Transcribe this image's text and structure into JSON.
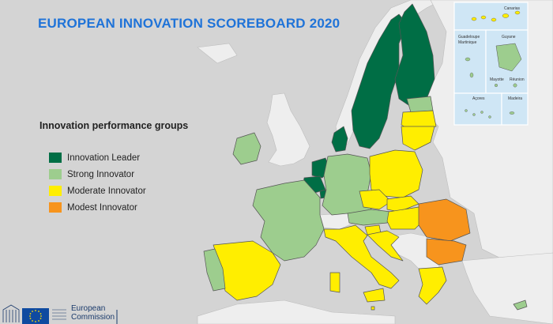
{
  "title": "EUROPEAN INNOVATION SCOREBOARD 2020",
  "legend": {
    "title": "Innovation performance groups",
    "items": [
      {
        "label": "Innovation Leader",
        "color": "#006e45"
      },
      {
        "label": "Strong Innovator",
        "color": "#9dcd8e"
      },
      {
        "label": "Moderate Innovator",
        "color": "#ffee00"
      },
      {
        "label": "Modest Innovator",
        "color": "#f7941d"
      }
    ]
  },
  "countries": [
    {
      "name": "Sweden",
      "group": "Innovation Leader"
    },
    {
      "name": "Finland",
      "group": "Innovation Leader"
    },
    {
      "name": "Denmark",
      "group": "Innovation Leader"
    },
    {
      "name": "Netherlands",
      "group": "Innovation Leader"
    },
    {
      "name": "Luxembourg",
      "group": "Innovation Leader"
    },
    {
      "name": "Belgium",
      "group": "Innovation Leader"
    },
    {
      "name": "Estonia",
      "group": "Strong Innovator"
    },
    {
      "name": "Ireland",
      "group": "Strong Innovator"
    },
    {
      "name": "France",
      "group": "Strong Innovator"
    },
    {
      "name": "Germany",
      "group": "Strong Innovator"
    },
    {
      "name": "Austria",
      "group": "Strong Innovator"
    },
    {
      "name": "Portugal",
      "group": "Strong Innovator"
    },
    {
      "name": "Cyprus",
      "group": "Strong Innovator"
    },
    {
      "name": "Latvia",
      "group": "Moderate Innovator"
    },
    {
      "name": "Lithuania",
      "group": "Moderate Innovator"
    },
    {
      "name": "Poland",
      "group": "Moderate Innovator"
    },
    {
      "name": "Czechia",
      "group": "Moderate Innovator"
    },
    {
      "name": "Slovakia",
      "group": "Moderate Innovator"
    },
    {
      "name": "Hungary",
      "group": "Moderate Innovator"
    },
    {
      "name": "Slovenia",
      "group": "Moderate Innovator"
    },
    {
      "name": "Croatia",
      "group": "Moderate Innovator"
    },
    {
      "name": "Italy",
      "group": "Moderate Innovator"
    },
    {
      "name": "Spain",
      "group": "Moderate Innovator"
    },
    {
      "name": "Greece",
      "group": "Moderate Innovator"
    },
    {
      "name": "Malta",
      "group": "Moderate Innovator"
    },
    {
      "name": "Romania",
      "group": "Modest Innovator"
    },
    {
      "name": "Bulgaria",
      "group": "Modest Innovator"
    }
  ],
  "insets": {
    "canarias": "Canarias",
    "guadeloupe": "Guadeloupe",
    "martinique": "Martinique",
    "guyane": "Guyane",
    "mayotte": "Mayotte",
    "reunion": "Réunion",
    "acores": "Açores",
    "madeira": "Madeira"
  },
  "logo": {
    "line1": "European",
    "line2": "Commission"
  },
  "colors": {
    "sea": "#d4d4d4",
    "non_eu_land": "#eeeeee",
    "border": "#555555",
    "title": "#1f73d8",
    "inset_sea": "#cfe6f5"
  }
}
